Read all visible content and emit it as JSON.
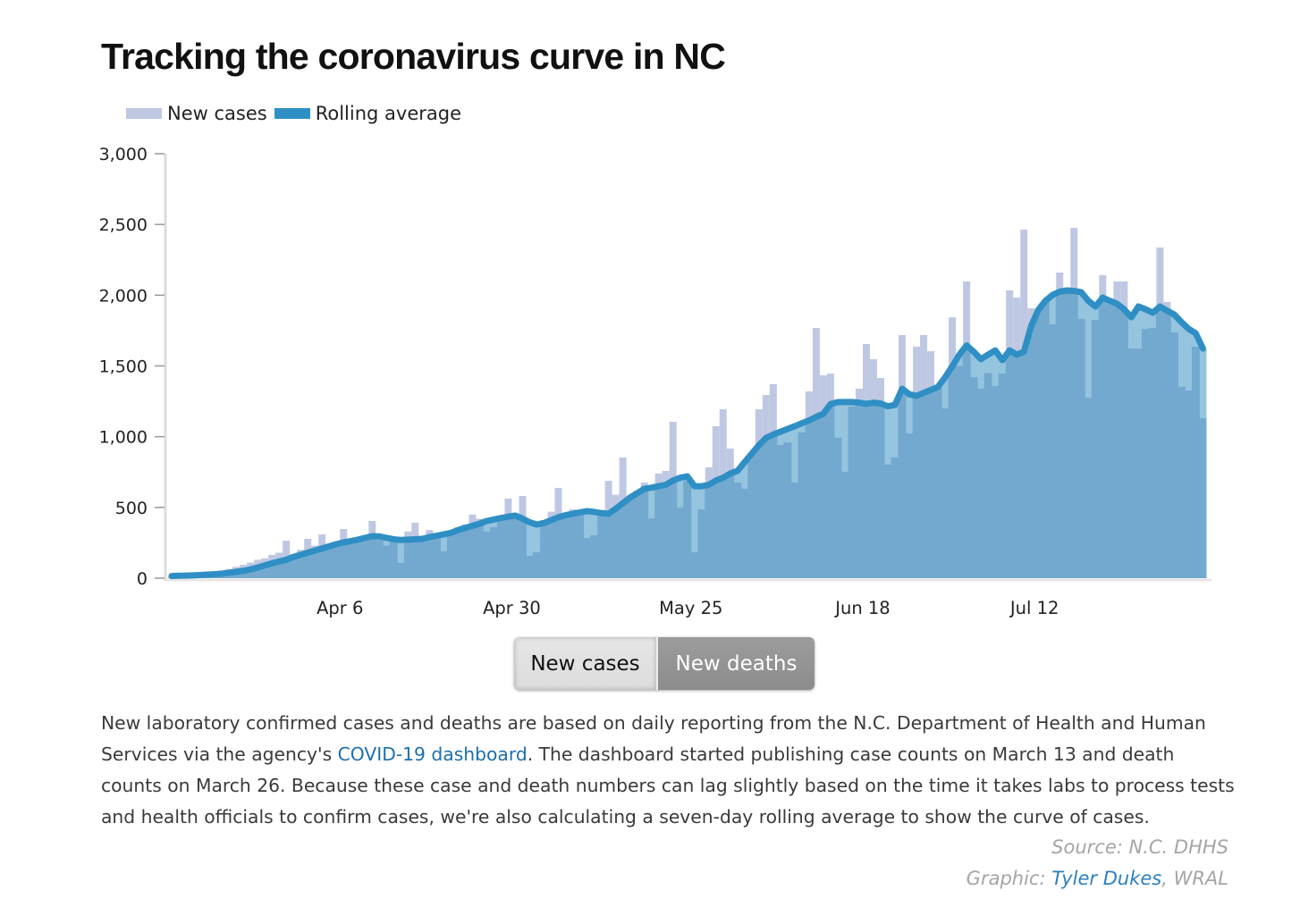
{
  "title": "Tracking the coronavirus curve in NC",
  "legend": [
    {
      "label": "New cases",
      "color": "#bfc8e2"
    },
    {
      "label": "Rolling average",
      "color": "#2f8fc4"
    }
  ],
  "colors": {
    "bars": "#bfc8e2",
    "area": "#74a9cf",
    "area_light": "#95c4df",
    "line": "#2f8fc4"
  },
  "chart_data": {
    "type": "bar",
    "title": "",
    "xlabel": "",
    "ylabel": "",
    "ylim": [
      0,
      3000
    ],
    "y_ticks": [
      "0",
      "500",
      "1,000",
      "1,500",
      "2,000",
      "2,500",
      "3,000"
    ],
    "y_tick_values": [
      0,
      500,
      1000,
      1500,
      2000,
      2500,
      3000
    ],
    "x_ticks": [
      "Apr 6",
      "Apr 30",
      "May 25",
      "Jun 18",
      "Jul 12"
    ],
    "grid": false,
    "legend_position": "top-left",
    "x": [
      "Mar 13",
      "Mar 14",
      "Mar 15",
      "Mar 16",
      "Mar 17",
      "Mar 18",
      "Mar 19",
      "Mar 20",
      "Mar 21",
      "Mar 22",
      "Mar 23",
      "Mar 24",
      "Mar 25",
      "Mar 26",
      "Mar 27",
      "Mar 28",
      "Mar 29",
      "Mar 30",
      "Mar 31",
      "Apr 1",
      "Apr 2",
      "Apr 3",
      "Apr 4",
      "Apr 5",
      "Apr 6",
      "Apr 7",
      "Apr 8",
      "Apr 9",
      "Apr 10",
      "Apr 11",
      "Apr 12",
      "Apr 13",
      "Apr 14",
      "Apr 15",
      "Apr 16",
      "Apr 17",
      "Apr 18",
      "Apr 19",
      "Apr 20",
      "Apr 21",
      "Apr 22",
      "Apr 23",
      "Apr 24",
      "Apr 25",
      "Apr 26",
      "Apr 27",
      "Apr 28",
      "Apr 29",
      "Apr 30",
      "May 1",
      "May 2",
      "May 3",
      "May 4",
      "May 5",
      "May 6",
      "May 7",
      "May 8",
      "May 9",
      "May 10",
      "May 11",
      "May 12",
      "May 13",
      "May 14",
      "May 15",
      "May 16",
      "May 17",
      "May 18",
      "May 19",
      "May 20",
      "May 21",
      "May 22",
      "May 23",
      "May 24",
      "May 25",
      "May 26",
      "May 27",
      "May 28",
      "May 29",
      "May 30",
      "May 31",
      "Jun 1",
      "Jun 2",
      "Jun 3",
      "Jun 4",
      "Jun 5",
      "Jun 6",
      "Jun 7",
      "Jun 8",
      "Jun 9",
      "Jun 10",
      "Jun 11",
      "Jun 12",
      "Jun 13",
      "Jun 14",
      "Jun 15",
      "Jun 16",
      "Jun 17",
      "Jun 18",
      "Jun 19",
      "Jun 20",
      "Jun 21",
      "Jun 22",
      "Jun 23",
      "Jun 24",
      "Jun 25",
      "Jun 26",
      "Jun 27",
      "Jun 28",
      "Jun 29",
      "Jun 30",
      "Jul 1",
      "Jul 2",
      "Jul 3",
      "Jul 4",
      "Jul 5",
      "Jul 6",
      "Jul 7",
      "Jul 8",
      "Jul 9",
      "Jul 10",
      "Jul 11",
      "Jul 12",
      "Jul 13",
      "Jul 14",
      "Jul 15",
      "Jul 16",
      "Jul 17",
      "Jul 18",
      "Jul 19",
      "Jul 20",
      "Jul 21",
      "Jul 22",
      "Jul 23",
      "Jul 24",
      "Jul 25",
      "Jul 26",
      "Jul 27",
      "Jul 28",
      "Jul 29",
      "Jul 30",
      "Jul 31",
      "Aug 1",
      "Aug 2",
      "Aug 3",
      "Aug 4"
    ],
    "series": [
      {
        "name": "New cases",
        "type": "bar",
        "values": [
          15,
          20,
          10,
          25,
          30,
          40,
          50,
          55,
          65,
          80,
          95,
          110,
          130,
          140,
          165,
          180,
          265,
          170,
          200,
          278,
          230,
          310,
          240,
          260,
          347,
          250,
          270,
          290,
          404,
          270,
          230,
          260,
          107,
          330,
          392,
          280,
          340,
          290,
          190,
          310,
          360,
          380,
          450,
          420,
          330,
          360,
          410,
          562,
          430,
          581,
          158,
          183,
          410,
          470,
          638,
          460,
          486,
          460,
          284,
          303,
          480,
          688,
          590,
          853,
          560,
          620,
          676,
          423,
          739,
          758,
          1105,
          499,
          690,
          183,
          486,
          783,
          1074,
          1194,
          916,
          676,
          632,
          880,
          1194,
          1295,
          1371,
          941,
          960,
          676,
          1030,
          1320,
          1768,
          1434,
          1446,
          992,
          752,
          1213,
          1339,
          1655,
          1548,
          1415,
          802,
          853,
          1718,
          1023,
          1636,
          1718,
          1604,
          1352,
          1200,
          1844,
          1500,
          2097,
          1421,
          1339,
          1450,
          1358,
          1446,
          2034,
          1983,
          2463,
          1907,
          1895,
          1950,
          1794,
          2160,
          2021,
          2476,
          1832,
          1276,
          1825,
          2141,
          1939,
          2097,
          2097,
          1623,
          1623,
          1762,
          1768,
          2337,
          1952,
          1737,
          1352,
          1326,
          1636,
          1131
        ]
      },
      {
        "name": "Rolling average",
        "type": "line",
        "values": [
          15,
          17,
          18,
          20,
          22,
          25,
          28,
          32,
          38,
          45,
          52,
          62,
          75,
          90,
          105,
          118,
          130,
          150,
          165,
          180,
          195,
          210,
          225,
          240,
          253,
          262,
          272,
          285,
          297,
          295,
          285,
          275,
          270,
          272,
          275,
          278,
          290,
          300,
          310,
          320,
          340,
          355,
          370,
          385,
          404,
          415,
          425,
          435,
          442,
          420,
          395,
          379,
          390,
          410,
          430,
          445,
          455,
          465,
          474,
          468,
          460,
          455,
          490,
          530,
          570,
          600,
          632,
          640,
          650,
          660,
          690,
          710,
          720,
          650,
          650,
          660,
          690,
          710,
          740,
          758,
          820,
          880,
          940,
          992,
          1015,
          1035,
          1055,
          1074,
          1095,
          1115,
          1140,
          1162,
          1230,
          1244,
          1245,
          1245,
          1240,
          1232,
          1240,
          1235,
          1215,
          1225,
          1339,
          1300,
          1288,
          1310,
          1330,
          1352,
          1420,
          1497,
          1580,
          1645,
          1600,
          1548,
          1580,
          1610,
          1541,
          1610,
          1580,
          1600,
          1780,
          1895,
          1960,
          2002,
          2025,
          2034,
          2030,
          2021,
          1960,
          1920,
          1983,
          1960,
          1939,
          1900,
          1844,
          1920,
          1900,
          1876,
          1920,
          1890,
          1863,
          1810,
          1762,
          1730,
          1623
        ]
      }
    ]
  },
  "toggle": {
    "cases_label": "New cases",
    "deaths_label": "New deaths",
    "selected": "New cases"
  },
  "description": {
    "part1": "New laboratory confirmed cases and deaths are based on daily reporting from the N.C. Department of Health and Human Services via the agency's ",
    "link_text": "COVID-19 dashboard",
    "part2": ". The dashboard started publishing case counts on March 13 and death counts on March 26. Because these case and death numbers can lag slightly based on the time it takes labs to process tests and health officials to confirm cases, we're also calculating a seven-day rolling average to show the curve of cases."
  },
  "credits": {
    "source": "Source: N.C. DHHS",
    "graphic_prefix": "Graphic: ",
    "author": "Tyler Dukes",
    "org_suffix": ", WRAL"
  }
}
